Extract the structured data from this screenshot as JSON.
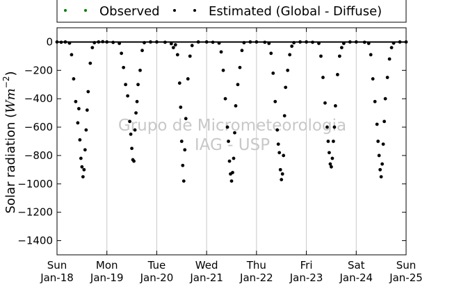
{
  "chart_data": {
    "type": "scatter",
    "title": "",
    "xlabel": "",
    "ylabel": "Solar radiation (Wm⁻²)",
    "ylabel_parts": {
      "prefix": "Solar radiation (",
      "unit": "Wm",
      "exponent": "−2",
      "suffix": ")"
    },
    "xlim": [
      "2018-01-18",
      "2018-01-25"
    ],
    "ylim": [
      -1500,
      100
    ],
    "yticks": [
      0,
      -200,
      -400,
      -600,
      -800,
      -1000,
      -1200,
      -1400
    ],
    "ytick_labels": [
      "0",
      "−200",
      "−400",
      "−600",
      "−800",
      "−1000",
      "−1200",
      "−1400"
    ],
    "xticks": [
      {
        "date": "2018-01-18",
        "day": "Sun",
        "date_label": "Jan-18"
      },
      {
        "date": "2018-01-19",
        "day": "Mon",
        "date_label": "Jan-19"
      },
      {
        "date": "2018-01-20",
        "day": "Tue",
        "date_label": "Jan-20"
      },
      {
        "date": "2018-01-21",
        "day": "Wed",
        "date_label": "Jan-21"
      },
      {
        "date": "2018-01-22",
        "day": "Thu",
        "date_label": "Jan-22"
      },
      {
        "date": "2018-01-23",
        "day": "Fri",
        "date_label": "Jan-23"
      },
      {
        "date": "2018-01-24",
        "day": "Sat",
        "date_label": "Jan-24"
      },
      {
        "date": "2018-01-25",
        "day": "Sun",
        "date_label": "Jan-25"
      }
    ],
    "grid": "vertical",
    "legend_position": "top-center",
    "zero_line": true,
    "watermark": [
      "Grupo de Micrometeorologia",
      "IAG - USP"
    ],
    "series": [
      {
        "name": "Observed",
        "color": "#008000",
        "points": []
      },
      {
        "name": "Estimated (Global - Diffuse)",
        "color": "#000000",
        "points": [
          [
            "2018-01-18 00:00",
            0
          ],
          [
            "2018-01-18 02:00",
            -2
          ],
          [
            "2018-01-18 04:00",
            0
          ],
          [
            "2018-01-18 06:00",
            -8
          ],
          [
            "2018-01-18 07:00",
            -90
          ],
          [
            "2018-01-18 08:00",
            -260
          ],
          [
            "2018-01-18 09:00",
            -420
          ],
          [
            "2018-01-18 10:00",
            -570
          ],
          [
            "2018-01-18 10:30",
            -470
          ],
          [
            "2018-01-18 11:00",
            -690
          ],
          [
            "2018-01-18 11:30",
            -820
          ],
          [
            "2018-01-18 12:00",
            -880
          ],
          [
            "2018-01-18 12:30",
            -950
          ],
          [
            "2018-01-18 13:00",
            -900
          ],
          [
            "2018-01-18 13:30",
            -760
          ],
          [
            "2018-01-18 14:00",
            -620
          ],
          [
            "2018-01-18 14:30",
            -480
          ],
          [
            "2018-01-18 15:00",
            -350
          ],
          [
            "2018-01-18 16:00",
            -150
          ],
          [
            "2018-01-18 17:00",
            -40
          ],
          [
            "2018-01-18 18:00",
            -5
          ],
          [
            "2018-01-18 20:00",
            0
          ],
          [
            "2018-01-18 22:00",
            2
          ],
          [
            "2018-01-19 00:00",
            0
          ],
          [
            "2018-01-19 03:00",
            -3
          ],
          [
            "2018-01-19 06:00",
            -10
          ],
          [
            "2018-01-19 07:00",
            -80
          ],
          [
            "2018-01-19 08:00",
            -180
          ],
          [
            "2018-01-19 09:00",
            -300
          ],
          [
            "2018-01-19 10:00",
            -380
          ],
          [
            "2018-01-19 11:00",
            -560
          ],
          [
            "2018-01-19 11:30",
            -650
          ],
          [
            "2018-01-19 12:00",
            -750
          ],
          [
            "2018-01-19 12:30",
            -830
          ],
          [
            "2018-01-19 13:00",
            -840
          ],
          [
            "2018-01-19 13:30",
            -620
          ],
          [
            "2018-01-19 14:00",
            -500
          ],
          [
            "2018-01-19 14:30",
            -420
          ],
          [
            "2018-01-19 15:00",
            -300
          ],
          [
            "2018-01-19 16:00",
            -200
          ],
          [
            "2018-01-19 17:00",
            -60
          ],
          [
            "2018-01-19 18:00",
            -5
          ],
          [
            "2018-01-19 21:00",
            0
          ],
          [
            "2018-01-20 00:00",
            0
          ],
          [
            "2018-01-20 04:00",
            -2
          ],
          [
            "2018-01-20 07:00",
            -12
          ],
          [
            "2018-01-20 08:00",
            -40
          ],
          [
            "2018-01-20 09:00",
            -20
          ],
          [
            "2018-01-20 10:00",
            -90
          ],
          [
            "2018-01-20 11:00",
            -290
          ],
          [
            "2018-01-20 11:30",
            -460
          ],
          [
            "2018-01-20 12:00",
            -700
          ],
          [
            "2018-01-20 12:30",
            -870
          ],
          [
            "2018-01-20 13:00",
            -980
          ],
          [
            "2018-01-20 13:30",
            -760
          ],
          [
            "2018-01-20 14:00",
            -540
          ],
          [
            "2018-01-20 15:00",
            -260
          ],
          [
            "2018-01-20 16:00",
            -100
          ],
          [
            "2018-01-20 17:00",
            -25
          ],
          [
            "2018-01-20 20:00",
            0
          ],
          [
            "2018-01-21 00:00",
            0
          ],
          [
            "2018-01-21 03:00",
            -2
          ],
          [
            "2018-01-21 06:00",
            -8
          ],
          [
            "2018-01-21 07:00",
            -70
          ],
          [
            "2018-01-21 08:00",
            -200
          ],
          [
            "2018-01-21 09:00",
            -400
          ],
          [
            "2018-01-21 10:00",
            -600
          ],
          [
            "2018-01-21 10:30",
            -700
          ],
          [
            "2018-01-21 11:00",
            -840
          ],
          [
            "2018-01-21 11:30",
            -930
          ],
          [
            "2018-01-21 12:00",
            -980
          ],
          [
            "2018-01-21 12:30",
            -920
          ],
          [
            "2018-01-21 13:00",
            -820
          ],
          [
            "2018-01-21 13:30",
            -640
          ],
          [
            "2018-01-21 14:00",
            -450
          ],
          [
            "2018-01-21 15:00",
            -300
          ],
          [
            "2018-01-21 16:00",
            -180
          ],
          [
            "2018-01-21 17:00",
            -60
          ],
          [
            "2018-01-21 18:00",
            -5
          ],
          [
            "2018-01-21 21:00",
            0
          ],
          [
            "2018-01-22 00:00",
            0
          ],
          [
            "2018-01-22 04:00",
            -2
          ],
          [
            "2018-01-22 06:00",
            -10
          ],
          [
            "2018-01-22 07:00",
            -80
          ],
          [
            "2018-01-22 08:00",
            -220
          ],
          [
            "2018-01-22 09:00",
            -420
          ],
          [
            "2018-01-22 10:00",
            -620
          ],
          [
            "2018-01-22 10:30",
            -720
          ],
          [
            "2018-01-22 11:00",
            -780
          ],
          [
            "2018-01-22 11:30",
            -900
          ],
          [
            "2018-01-22 12:00",
            -970
          ],
          [
            "2018-01-22 12:30",
            -930
          ],
          [
            "2018-01-22 13:00",
            -800
          ],
          [
            "2018-01-22 13:30",
            -520
          ],
          [
            "2018-01-22 14:00",
            -320
          ],
          [
            "2018-01-22 15:00",
            -200
          ],
          [
            "2018-01-22 16:00",
            -90
          ],
          [
            "2018-01-22 17:00",
            -30
          ],
          [
            "2018-01-22 18:00",
            -5
          ],
          [
            "2018-01-22 21:00",
            0
          ],
          [
            "2018-01-23 00:00",
            0
          ],
          [
            "2018-01-23 03:00",
            -2
          ],
          [
            "2018-01-23 06:00",
            -10
          ],
          [
            "2018-01-23 07:00",
            -100
          ],
          [
            "2018-01-23 08:00",
            -250
          ],
          [
            "2018-01-23 09:00",
            -430
          ],
          [
            "2018-01-23 10:00",
            -600
          ],
          [
            "2018-01-23 10:30",
            -700
          ],
          [
            "2018-01-23 11:00",
            -780
          ],
          [
            "2018-01-23 11:30",
            -860
          ],
          [
            "2018-01-23 12:00",
            -880
          ],
          [
            "2018-01-23 12:30",
            -820
          ],
          [
            "2018-01-23 13:00",
            -700
          ],
          [
            "2018-01-23 13:30",
            -600
          ],
          [
            "2018-01-23 14:00",
            -450
          ],
          [
            "2018-01-23 15:00",
            -230
          ],
          [
            "2018-01-23 16:00",
            -100
          ],
          [
            "2018-01-23 17:00",
            -40
          ],
          [
            "2018-01-23 18:00",
            -10
          ],
          [
            "2018-01-23 21:00",
            0
          ],
          [
            "2018-01-24 00:00",
            0
          ],
          [
            "2018-01-24 04:00",
            -2
          ],
          [
            "2018-01-24 06:00",
            -10
          ],
          [
            "2018-01-24 07:00",
            -90
          ],
          [
            "2018-01-24 08:00",
            -260
          ],
          [
            "2018-01-24 09:00",
            -420
          ],
          [
            "2018-01-24 10:00",
            -580
          ],
          [
            "2018-01-24 10:30",
            -700
          ],
          [
            "2018-01-24 11:00",
            -800
          ],
          [
            "2018-01-24 11:30",
            -900
          ],
          [
            "2018-01-24 12:00",
            -950
          ],
          [
            "2018-01-24 12:30",
            -860
          ],
          [
            "2018-01-24 13:00",
            -720
          ],
          [
            "2018-01-24 13:30",
            -560
          ],
          [
            "2018-01-24 14:00",
            -400
          ],
          [
            "2018-01-24 15:00",
            -250
          ],
          [
            "2018-01-24 16:00",
            -120
          ],
          [
            "2018-01-24 17:00",
            -40
          ],
          [
            "2018-01-24 18:00",
            -8
          ],
          [
            "2018-01-24 21:00",
            0
          ],
          [
            "2018-01-25 00:00",
            0
          ]
        ]
      }
    ]
  }
}
